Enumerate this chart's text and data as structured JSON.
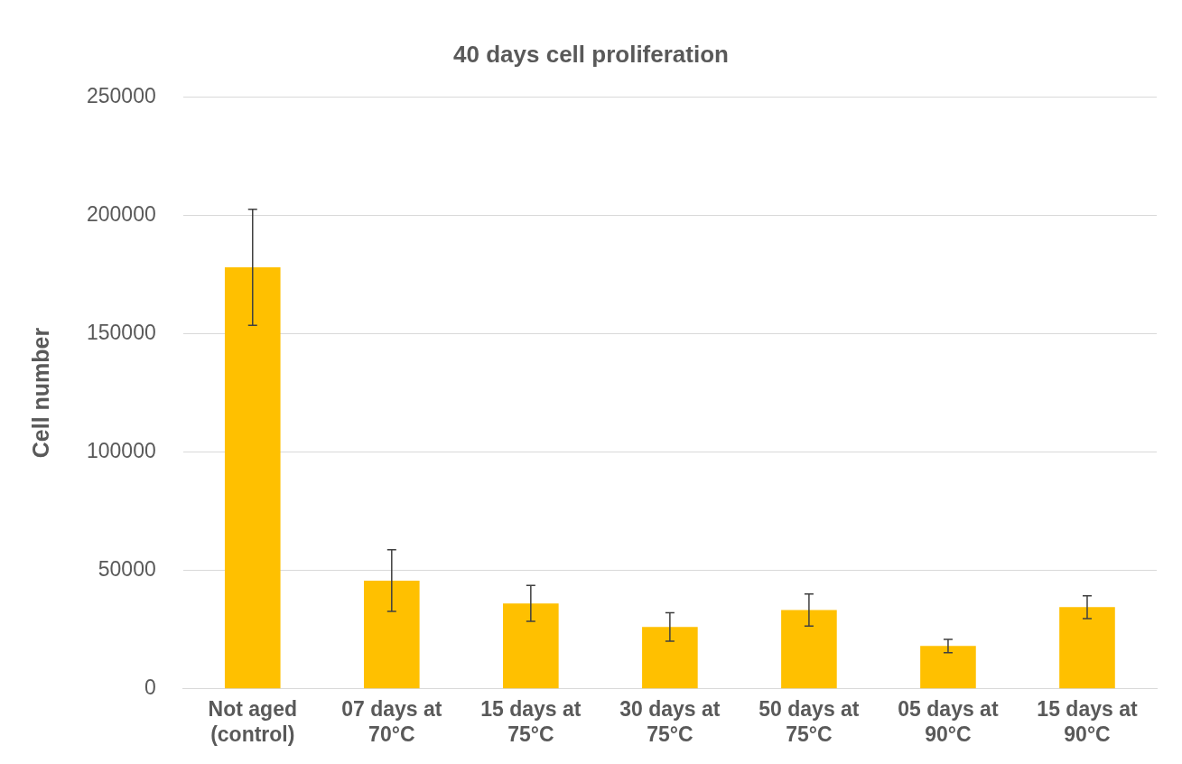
{
  "chart_data": {
    "type": "bar",
    "title": "40 days cell proliferation",
    "ylabel": "Cell number",
    "categories": [
      "Not aged (control)",
      "07 days at 70°C",
      "15 days at 75°C",
      "30 days at 75°C",
      "50 days at 75°C",
      "05 days at 90°C",
      "15 days at 90°C"
    ],
    "values": [
      178000,
      45700,
      36100,
      26100,
      33300,
      18100,
      34500
    ],
    "errors": [
      24500,
      13000,
      7600,
      6000,
      6800,
      2800,
      4800
    ],
    "color": "#ffc000",
    "ylim": [
      0,
      250000
    ],
    "yticks": [
      0,
      50000,
      100000,
      150000,
      200000,
      250000
    ],
    "grid": "y",
    "legend": false
  }
}
